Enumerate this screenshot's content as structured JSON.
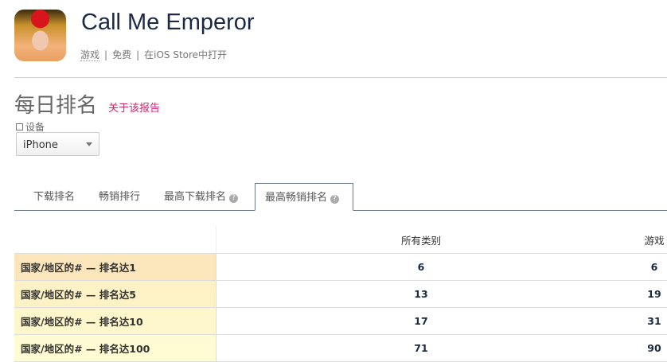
{
  "app": {
    "title": "Call Me Emperor",
    "category": "游戏",
    "price": "免费",
    "store_link": "在iOS Store中打开"
  },
  "section": {
    "title": "每日排名",
    "about_link": "关于该报告",
    "device_label": "设备",
    "device_value": "iPhone"
  },
  "tabs": [
    {
      "label": "下载排名"
    },
    {
      "label": "畅销排行"
    },
    {
      "label": "最高下载排名",
      "help": "?"
    },
    {
      "label": "最高畅销排名",
      "help": "?",
      "active": true
    }
  ],
  "table": {
    "headers": [
      "",
      "所有类别",
      "游戏"
    ],
    "rows": [
      {
        "label": "国家/地区的# — 排名达1",
        "all": "6",
        "games": "6",
        "color": "#fbe6bc"
      },
      {
        "label": "国家/地区的# — 排名达5",
        "all": "13",
        "games": "19",
        "color": "#fdf2c6"
      },
      {
        "label": "国家/地区的# — 排名达10",
        "all": "17",
        "games": "31",
        "color": "#fef7cc"
      },
      {
        "label": "国家/地区的# — 排名达100",
        "all": "71",
        "games": "90",
        "color": "#fffbd3"
      }
    ]
  },
  "colors": {
    "accent": "#d6246e",
    "title": "#1a2a44"
  }
}
